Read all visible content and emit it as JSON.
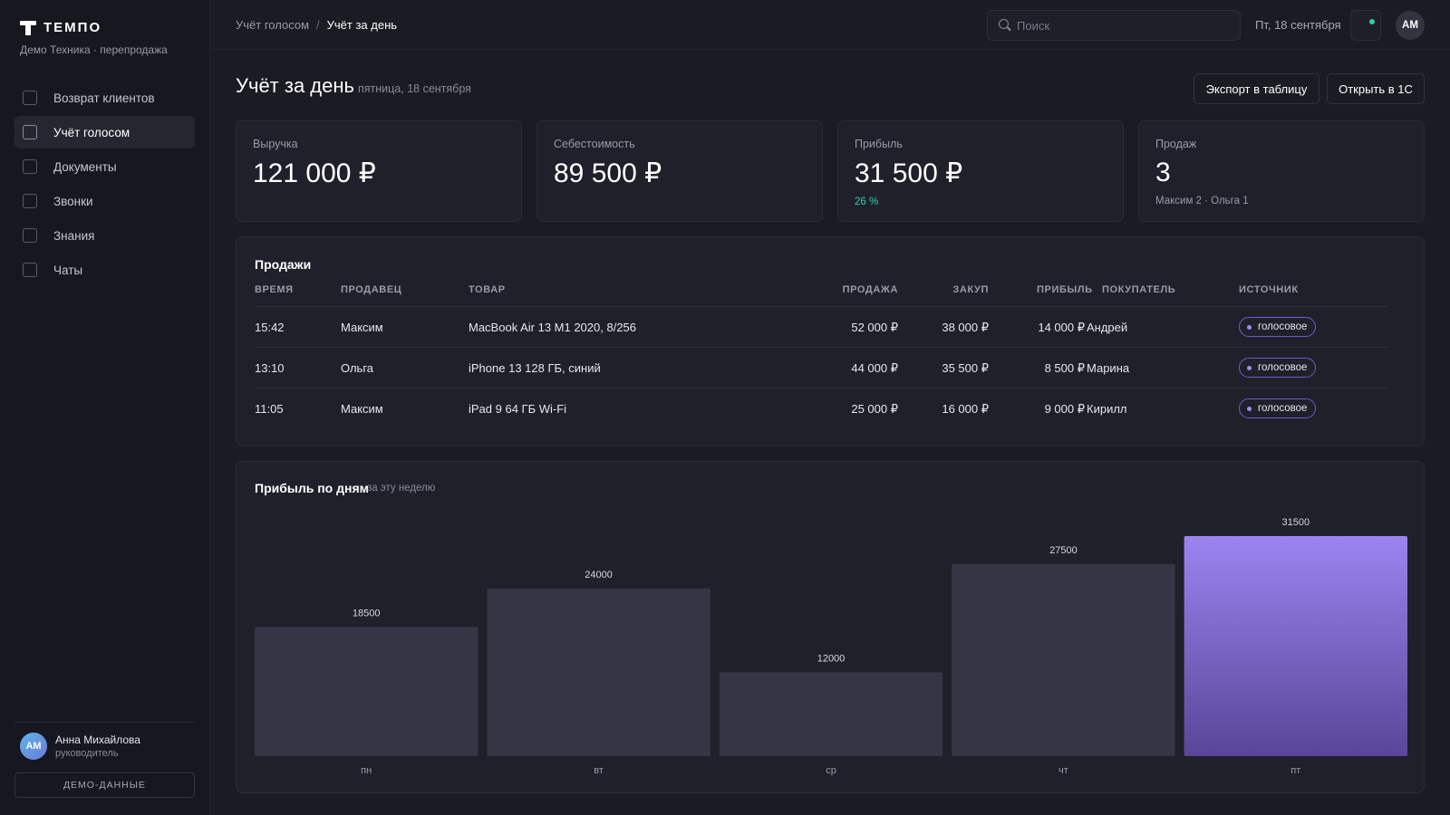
{
  "app": {
    "name": "ТЕМПО",
    "subtitle": "Демо Техника · перепродажа"
  },
  "sidebar": {
    "items": [
      {
        "label": "Возврат клиентов",
        "active": false
      },
      {
        "label": "Учёт голосом",
        "active": true
      },
      {
        "label": "Документы",
        "active": false
      },
      {
        "label": "Звонки",
        "active": false
      },
      {
        "label": "Знания",
        "active": false
      },
      {
        "label": "Чаты",
        "active": false
      }
    ],
    "user": {
      "initials": "АМ",
      "name": "Анна Михайлова",
      "role": "руководитель"
    },
    "demo_label": "ДЕМО-ДАННЫЕ"
  },
  "topbar": {
    "breadcrumb": [
      "Учёт голосом",
      "Учёт за день"
    ],
    "breadcrumb_sep": "/",
    "search_placeholder": "Поиск",
    "date": "Пт, 18 сентября",
    "avatar_initials": "АМ"
  },
  "page": {
    "title": "Учёт за день",
    "date": "пятница, 18 сентября",
    "export_label": "Экспорт в таблицу",
    "open_1c_label": "Открыть в 1С"
  },
  "kpis": [
    {
      "label": "Выручка",
      "value": "121 000 ₽",
      "sub": ""
    },
    {
      "label": "Себестоимость",
      "value": "89 500 ₽",
      "sub": ""
    },
    {
      "label": "Прибыль",
      "value": "31 500 ₽",
      "sub": "26 %"
    },
    {
      "label": "Продаж",
      "value": "3",
      "sub": "Максим 2 · Ольга 1"
    }
  ],
  "sales": {
    "title": "Продажи",
    "columns": [
      "ВРЕМЯ",
      "ПРОДАВЕЦ",
      "ТОВАР",
      "ПРОДАЖА",
      "ЗАКУП",
      "ПРИБЫЛЬ",
      "ПОКУПАТЕЛЬ",
      "ИСТОЧНИК"
    ],
    "rows": [
      {
        "time": "15:42",
        "seller": "Максим",
        "item": "MacBook Air 13 M1 2020, 8/256",
        "sale": "52 000 ₽",
        "cost": "38 000 ₽",
        "profit": "14 000 ₽",
        "buyer": "Андрей",
        "source": "голосовое"
      },
      {
        "time": "13:10",
        "seller": "Ольга",
        "item": "iPhone 13 128 ГБ, синий",
        "sale": "44 000 ₽",
        "cost": "35 500 ₽",
        "profit": "8 500 ₽",
        "buyer": "Марина",
        "source": "голосовое"
      },
      {
        "time": "11:05",
        "seller": "Максим",
        "item": "iPad 9 64 ГБ Wi-Fi",
        "sale": "25 000 ₽",
        "cost": "16 000 ₽",
        "profit": "9 000 ₽",
        "buyer": "Кирилл",
        "source": "голосовое"
      }
    ]
  },
  "chart": {
    "title": "Прибыль по дням",
    "subtitle": "за эту неделю"
  },
  "chart_data": {
    "type": "bar",
    "categories": [
      "пн",
      "вт",
      "ср",
      "чт",
      "пт"
    ],
    "values": [
      18500,
      24000,
      12000,
      27500,
      31500
    ],
    "highlight_index": 4,
    "ylim": [
      0,
      31500
    ],
    "grid": false,
    "colors": {
      "bar": "#353545",
      "highlight_top": "#9b84f0",
      "highlight_bottom": "#5a4698"
    }
  }
}
